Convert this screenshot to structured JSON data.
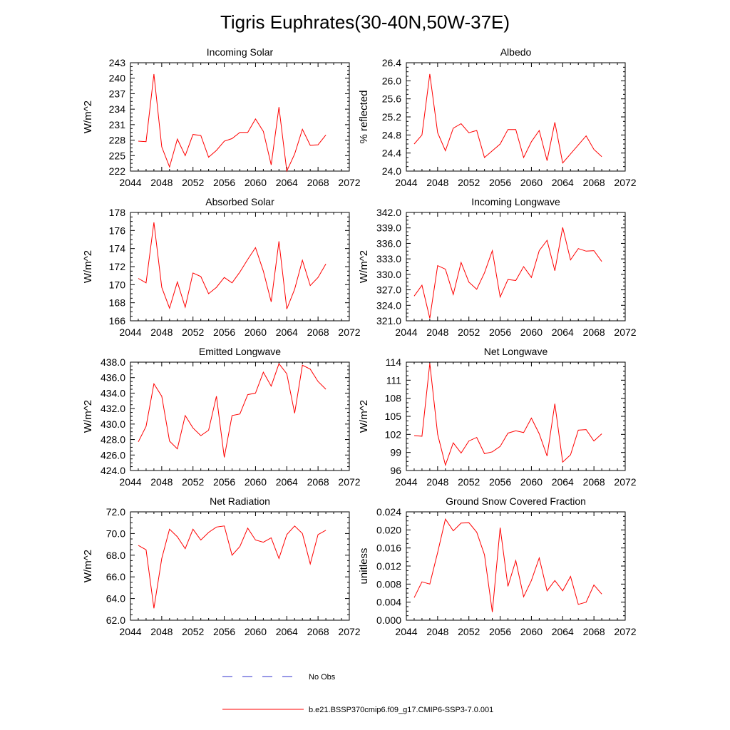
{
  "title": "Tigris Euphrates(30-40N,50W-37E)",
  "colors": {
    "model_line": "#ff0000",
    "obs_line": "#3030cc",
    "axis": "#000000"
  },
  "legend": {
    "obs_label": "No Obs",
    "model_label": "b.e21.BSSP370cmip6.f09_g17.CMIP6-SSP3-7.0.001"
  },
  "chart_data": [
    {
      "type": "line",
      "title": "Incoming Solar",
      "ylabel": "W/m^2",
      "xlim": [
        2044,
        2072
      ],
      "ylim": [
        222,
        243
      ],
      "xticks": [
        2044,
        2048,
        2052,
        2056,
        2060,
        2064,
        2068,
        2072
      ],
      "xtick_labels": [
        "2044",
        "2048",
        "2052",
        "2056",
        "2060",
        "2064",
        "2068",
        "2072"
      ],
      "yticks": [
        222,
        225,
        228,
        231,
        234,
        237,
        240,
        243
      ],
      "ytick_labels": [
        "222",
        "225",
        "228",
        "231",
        "234",
        "237",
        "240",
        "243"
      ],
      "x": [
        2045,
        2046,
        2047,
        2048,
        2049,
        2050,
        2051,
        2052,
        2053,
        2054,
        2055,
        2056,
        2057,
        2058,
        2059,
        2060,
        2061,
        2062,
        2063,
        2064,
        2065,
        2066,
        2067,
        2068,
        2069
      ],
      "values": [
        227.8,
        227.7,
        240.8,
        226.7,
        222.8,
        228.2,
        225.0,
        229.1,
        228.9,
        224.7,
        226.0,
        227.8,
        228.3,
        229.5,
        229.5,
        232.1,
        229.7,
        223.2,
        234.4,
        222.0,
        225.3,
        230.1,
        227.0,
        227.1,
        229.0
      ],
      "grid": false
    },
    {
      "type": "line",
      "title": "Albedo",
      "ylabel": "% reflected",
      "xlim": [
        2044,
        2072
      ],
      "ylim": [
        24.0,
        26.4
      ],
      "xticks": [
        2044,
        2048,
        2052,
        2056,
        2060,
        2064,
        2068,
        2072
      ],
      "xtick_labels": [
        "2044",
        "2048",
        "2052",
        "2056",
        "2060",
        "2064",
        "2068",
        "2072"
      ],
      "yticks": [
        24.0,
        24.4,
        24.8,
        25.2,
        25.6,
        26.0,
        26.4
      ],
      "ytick_labels": [
        "24.0",
        "24.4",
        "24.8",
        "25.2",
        "25.6",
        "26.0",
        "26.4"
      ],
      "x": [
        2045,
        2046,
        2047,
        2048,
        2049,
        2050,
        2051,
        2052,
        2053,
        2054,
        2055,
        2056,
        2057,
        2058,
        2059,
        2060,
        2061,
        2062,
        2063,
        2064,
        2065,
        2066,
        2067,
        2068,
        2069
      ],
      "values": [
        24.6,
        24.8,
        26.15,
        24.85,
        24.45,
        24.95,
        25.05,
        24.85,
        24.9,
        24.3,
        24.45,
        24.6,
        24.92,
        24.92,
        24.3,
        24.65,
        24.9,
        24.23,
        25.08,
        24.18,
        24.38,
        24.58,
        24.78,
        24.48,
        24.32
      ],
      "grid": false
    },
    {
      "type": "line",
      "title": "Absorbed Solar",
      "ylabel": "W/m^2",
      "xlim": [
        2044,
        2072
      ],
      "ylim": [
        166,
        178
      ],
      "xticks": [
        2044,
        2048,
        2052,
        2056,
        2060,
        2064,
        2068,
        2072
      ],
      "xtick_labels": [
        "2044",
        "2048",
        "2052",
        "2056",
        "2060",
        "2064",
        "2068",
        "2072"
      ],
      "yticks": [
        166,
        168,
        170,
        172,
        174,
        176,
        178
      ],
      "ytick_labels": [
        "166",
        "168",
        "170",
        "172",
        "174",
        "176",
        "178"
      ],
      "x": [
        2045,
        2046,
        2047,
        2048,
        2049,
        2050,
        2051,
        2052,
        2053,
        2054,
        2055,
        2056,
        2057,
        2058,
        2059,
        2060,
        2061,
        2062,
        2063,
        2064,
        2065,
        2066,
        2067,
        2068,
        2069
      ],
      "values": [
        170.7,
        170.2,
        176.9,
        169.7,
        167.4,
        170.3,
        167.5,
        171.3,
        170.9,
        169.0,
        169.7,
        170.8,
        170.2,
        171.4,
        172.8,
        174.1,
        171.5,
        168.1,
        174.8,
        167.3,
        169.5,
        172.7,
        169.9,
        170.8,
        172.3
      ],
      "grid": false
    },
    {
      "type": "line",
      "title": "Incoming Longwave",
      "ylabel": "W/m^2",
      "xlim": [
        2044,
        2072
      ],
      "ylim": [
        321.0,
        342.0
      ],
      "xticks": [
        2044,
        2048,
        2052,
        2056,
        2060,
        2064,
        2068,
        2072
      ],
      "xtick_labels": [
        "2044",
        "2048",
        "2052",
        "2056",
        "2060",
        "2064",
        "2068",
        "2072"
      ],
      "yticks": [
        321.0,
        324.0,
        327.0,
        330.0,
        333.0,
        336.0,
        339.0,
        342.0
      ],
      "ytick_labels": [
        "321.0",
        "324.0",
        "327.0",
        "330.0",
        "333.0",
        "336.0",
        "339.0",
        "342.0"
      ],
      "x": [
        2045,
        2046,
        2047,
        2048,
        2049,
        2050,
        2051,
        2052,
        2053,
        2054,
        2055,
        2056,
        2057,
        2058,
        2059,
        2060,
        2061,
        2062,
        2063,
        2064,
        2065,
        2066,
        2067,
        2068,
        2069
      ],
      "values": [
        325.8,
        327.9,
        321.5,
        331.7,
        331.0,
        326.1,
        332.3,
        328.5,
        327.1,
        330.3,
        334.6,
        325.6,
        329.0,
        328.8,
        331.5,
        329.4,
        334.6,
        336.6,
        330.7,
        339.1,
        332.8,
        335.0,
        334.5,
        334.6,
        332.5
      ],
      "grid": false
    },
    {
      "type": "line",
      "title": "Emitted Longwave",
      "ylabel": "W/m^2",
      "xlim": [
        2044,
        2072
      ],
      "ylim": [
        424.0,
        438.0
      ],
      "xticks": [
        2044,
        2048,
        2052,
        2056,
        2060,
        2064,
        2068,
        2072
      ],
      "xtick_labels": [
        "2044",
        "2048",
        "2052",
        "2056",
        "2060",
        "2064",
        "2068",
        "2072"
      ],
      "yticks": [
        424.0,
        426.0,
        428.0,
        430.0,
        432.0,
        434.0,
        436.0,
        438.0
      ],
      "ytick_labels": [
        "424.0",
        "426.0",
        "428.0",
        "430.0",
        "432.0",
        "434.0",
        "436.0",
        "438.0"
      ],
      "x": [
        2045,
        2046,
        2047,
        2048,
        2049,
        2050,
        2051,
        2052,
        2053,
        2054,
        2055,
        2056,
        2057,
        2058,
        2059,
        2060,
        2061,
        2062,
        2063,
        2064,
        2065,
        2066,
        2067,
        2068,
        2069
      ],
      "values": [
        427.7,
        429.7,
        435.2,
        433.6,
        427.8,
        426.8,
        431.1,
        429.5,
        428.5,
        429.2,
        433.6,
        425.7,
        431.1,
        431.3,
        433.8,
        434.0,
        436.7,
        434.9,
        437.8,
        436.5,
        431.4,
        437.6,
        437.1,
        435.5,
        434.5
      ],
      "grid": false
    },
    {
      "type": "line",
      "title": "Net Longwave",
      "ylabel": "W/m^2",
      "xlim": [
        2044,
        2072
      ],
      "ylim": [
        96,
        114
      ],
      "xticks": [
        2044,
        2048,
        2052,
        2056,
        2060,
        2064,
        2068,
        2072
      ],
      "xtick_labels": [
        "2044",
        "2048",
        "2052",
        "2056",
        "2060",
        "2064",
        "2068",
        "2072"
      ],
      "yticks": [
        96,
        99,
        102,
        105,
        108,
        111,
        114
      ],
      "ytick_labels": [
        "96",
        "99",
        "102",
        "105",
        "108",
        "111",
        "114"
      ],
      "x": [
        2045,
        2046,
        2047,
        2048,
        2049,
        2050,
        2051,
        2052,
        2053,
        2054,
        2055,
        2056,
        2057,
        2058,
        2059,
        2060,
        2061,
        2062,
        2063,
        2064,
        2065,
        2066,
        2067,
        2068,
        2069
      ],
      "values": [
        101.8,
        101.7,
        113.8,
        102.0,
        96.9,
        100.6,
        98.9,
        100.9,
        101.5,
        98.8,
        99.1,
        100.0,
        102.2,
        102.6,
        102.3,
        104.7,
        102.1,
        98.4,
        107.1,
        97.4,
        98.6,
        102.7,
        102.8,
        100.9,
        102.1
      ],
      "grid": false
    },
    {
      "type": "line",
      "title": "Net Radiation",
      "ylabel": "W/m^2",
      "xlim": [
        2044,
        2072
      ],
      "ylim": [
        62.0,
        72.0
      ],
      "xticks": [
        2044,
        2048,
        2052,
        2056,
        2060,
        2064,
        2068,
        2072
      ],
      "xtick_labels": [
        "2044",
        "2048",
        "2052",
        "2056",
        "2060",
        "2064",
        "2068",
        "2072"
      ],
      "yticks": [
        62.0,
        64.0,
        66.0,
        68.0,
        70.0,
        72.0
      ],
      "ytick_labels": [
        "62.0",
        "64.0",
        "66.0",
        "68.0",
        "70.0",
        "72.0"
      ],
      "x": [
        2045,
        2046,
        2047,
        2048,
        2049,
        2050,
        2051,
        2052,
        2053,
        2054,
        2055,
        2056,
        2057,
        2058,
        2059,
        2060,
        2061,
        2062,
        2063,
        2064,
        2065,
        2066,
        2067,
        2068,
        2069
      ],
      "values": [
        68.9,
        68.5,
        63.1,
        67.7,
        70.4,
        69.7,
        68.6,
        70.4,
        69.4,
        70.1,
        70.6,
        70.7,
        68.0,
        68.8,
        70.5,
        69.4,
        69.2,
        69.6,
        67.7,
        69.9,
        70.7,
        70.0,
        67.2,
        69.9,
        70.3
      ],
      "grid": false
    },
    {
      "type": "line",
      "title": "Ground Snow Covered Fraction",
      "ylabel": "unitless",
      "xlim": [
        2044,
        2072
      ],
      "ylim": [
        0.0,
        0.024
      ],
      "xticks": [
        2044,
        2048,
        2052,
        2056,
        2060,
        2064,
        2068,
        2072
      ],
      "xtick_labels": [
        "2044",
        "2048",
        "2052",
        "2056",
        "2060",
        "2064",
        "2068",
        "2072"
      ],
      "yticks": [
        0.0,
        0.004,
        0.008,
        0.012,
        0.016,
        0.02,
        0.024
      ],
      "ytick_labels": [
        "0.000",
        "0.004",
        "0.008",
        "0.012",
        "0.016",
        "0.020",
        "0.024"
      ],
      "x": [
        2045,
        2046,
        2047,
        2048,
        2049,
        2050,
        2051,
        2052,
        2053,
        2054,
        2055,
        2056,
        2057,
        2058,
        2059,
        2060,
        2061,
        2062,
        2063,
        2064,
        2065,
        2066,
        2067,
        2068,
        2069
      ],
      "values": [
        0.005,
        0.0085,
        0.008,
        0.015,
        0.0224,
        0.0198,
        0.0215,
        0.0216,
        0.0195,
        0.0145,
        0.0018,
        0.0205,
        0.0075,
        0.0132,
        0.0052,
        0.0088,
        0.0138,
        0.0065,
        0.0088,
        0.0065,
        0.0097,
        0.0035,
        0.004,
        0.0078,
        0.0058
      ],
      "grid": false
    }
  ]
}
